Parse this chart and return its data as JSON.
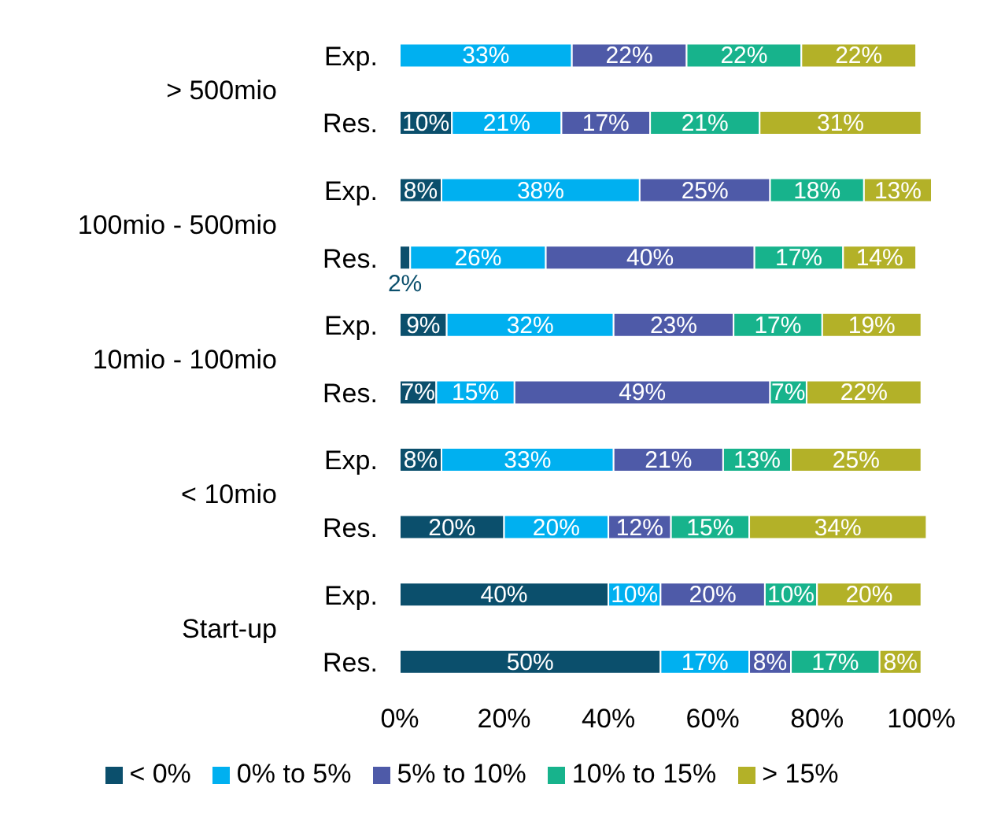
{
  "chart_data": {
    "type": "bar",
    "orientation": "horizontal",
    "stacked": true,
    "categories": [
      "Exp.",
      "Res.",
      "Exp.",
      "Res.",
      "Exp.",
      "Res.",
      "Exp.",
      "Res.",
      "Exp.",
      "Res."
    ],
    "annotations": [
      "> 500mio",
      "100mio - 500mio",
      "10mio - 100mio",
      "< 10mio",
      "Start-up"
    ],
    "series": [
      {
        "name": "< 0%",
        "color": "#0b4f6c",
        "values": [
          null,
          10,
          8,
          2,
          9,
          7,
          8,
          20,
          40,
          50
        ],
        "value_labels": [
          null,
          "10%",
          "8%",
          "2%",
          "9%",
          "7%",
          "8%",
          "20%",
          "40%",
          "50%"
        ]
      },
      {
        "name": "0% to 5%",
        "color": "#00b0f0",
        "values": [
          33,
          21,
          38,
          26,
          32,
          15,
          33,
          20,
          10,
          17
        ],
        "value_labels": [
          "33%",
          "21%",
          "38%",
          "26%",
          "32%",
          "15%",
          "33%",
          "20%",
          "10%",
          "17%"
        ]
      },
      {
        "name": "5% to 10%",
        "color": "#4e5aa8",
        "values": [
          22,
          17,
          25,
          40,
          23,
          49,
          21,
          12,
          20,
          8
        ],
        "value_labels": [
          "22%",
          "17%",
          "25%",
          "40%",
          "23%",
          "49%",
          "21%",
          "12%",
          "20%",
          "8%"
        ]
      },
      {
        "name": "10% to 15%",
        "color": "#17b38c",
        "values": [
          22,
          21,
          18,
          17,
          17,
          7,
          13,
          15,
          10,
          17
        ],
        "value_labels": [
          "22%",
          "21%",
          "18%",
          "17%",
          "17%",
          "7%",
          "13%",
          "15%",
          "10%",
          "17%"
        ]
      },
      {
        "name": "> 15%",
        "color": "#b3b128",
        "values": [
          22,
          31,
          13,
          14,
          19,
          22,
          25,
          34,
          20,
          8
        ],
        "value_labels": [
          "22%",
          "31%",
          "13%",
          "14%",
          "19%",
          "22%",
          "25%",
          "34%",
          "20%",
          "8%"
        ]
      }
    ],
    "xlim": [
      0,
      102
    ],
    "xticks": [
      {
        "value": 0,
        "label": "0%"
      },
      {
        "value": 20,
        "label": "20%"
      },
      {
        "value": 40,
        "label": "40%"
      },
      {
        "value": 60,
        "label": "60%"
      },
      {
        "value": 80,
        "label": "80%"
      },
      {
        "value": 100,
        "label": "100%"
      }
    ],
    "grid": false,
    "legend": "bottom"
  }
}
